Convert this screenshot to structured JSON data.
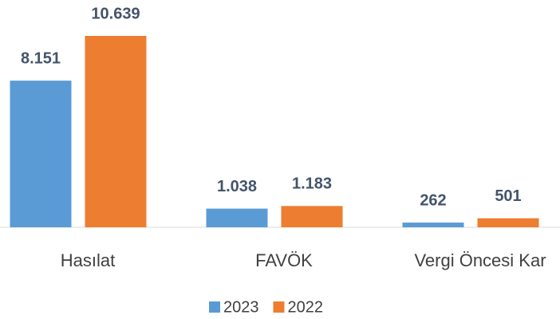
{
  "chart_data": {
    "type": "bar",
    "categories": [
      "Hasılat",
      "FAVÖK",
      "Vergi Öncesi Kar"
    ],
    "series": [
      {
        "name": "2023",
        "color": "#5b9bd5",
        "values": [
          8151,
          1038,
          262
        ],
        "value_labels": [
          "8.151",
          "1.038",
          "262"
        ]
      },
      {
        "name": "2022",
        "color": "#ed7d31",
        "values": [
          10639,
          1183,
          501
        ],
        "value_labels": [
          "10.639",
          "1.183",
          "501"
        ]
      }
    ]
  }
}
